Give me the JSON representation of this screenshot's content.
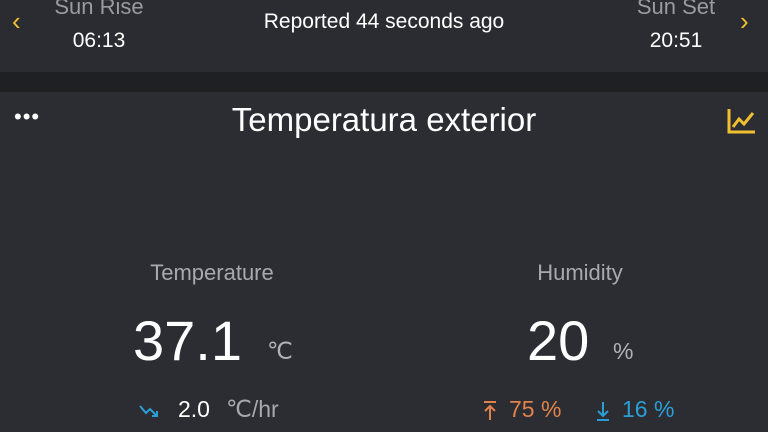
{
  "header": {
    "sunrise_label": "Sun Rise",
    "sunrise_time": "06:13",
    "sunset_label": "Sun Set",
    "sunset_time": "20:51",
    "reported": "Reported 44 seconds ago",
    "prev_icon": "chevron-left-icon",
    "next_icon": "chevron-right-icon"
  },
  "card": {
    "title": "Temperatura exterior",
    "menu_icon": "more-horizontal-icon",
    "chart_icon": "line-chart-icon",
    "temperature": {
      "label": "Temperature",
      "value": "37.1",
      "unit": "℃",
      "trend_value": "2.0",
      "trend_unit": "℃/hr",
      "trend_icon": "trending-down-icon"
    },
    "humidity": {
      "label": "Humidity",
      "value": "20",
      "unit": "%",
      "max": "75 %",
      "min": "16 %",
      "max_icon": "arrow-up-to-line-icon",
      "min_icon": "arrow-down-to-line-icon"
    }
  },
  "colors": {
    "accent": "#f0c030",
    "max": "#e0824a",
    "min": "#2a9fd6",
    "background": "#2c2d33"
  }
}
